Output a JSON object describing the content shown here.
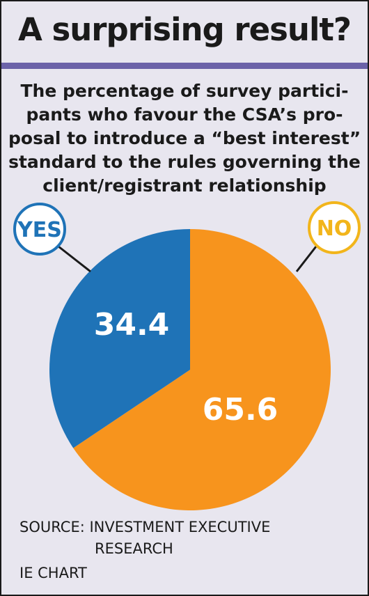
{
  "title": "A surprising result?",
  "subtitle_lines": [
    "The percentage of survey partici-",
    "pants who favour the CSA’s pro-",
    "posal to introduce a “best interest”",
    "standard to the rules governing the",
    "client/registrant relationship"
  ],
  "chart_data": {
    "type": "pie",
    "slices": [
      {
        "label": "YES",
        "value": 34.4,
        "value_label": "34.4",
        "color": "#1f73b7"
      },
      {
        "label": "NO",
        "value": 65.6,
        "value_label": "65.6",
        "color": "#f7941d"
      }
    ],
    "start": "12 o'clock",
    "direction": "clockwise from NO"
  },
  "legend": {
    "yes": {
      "label": "YES",
      "color": "#1f73b7"
    },
    "no": {
      "label": "NO",
      "color": "#f2b51b"
    }
  },
  "source": {
    "line1": "SOURCE: INVESTMENT EXECUTIVE",
    "line2": "RESEARCH"
  },
  "credit": "IE CHART"
}
